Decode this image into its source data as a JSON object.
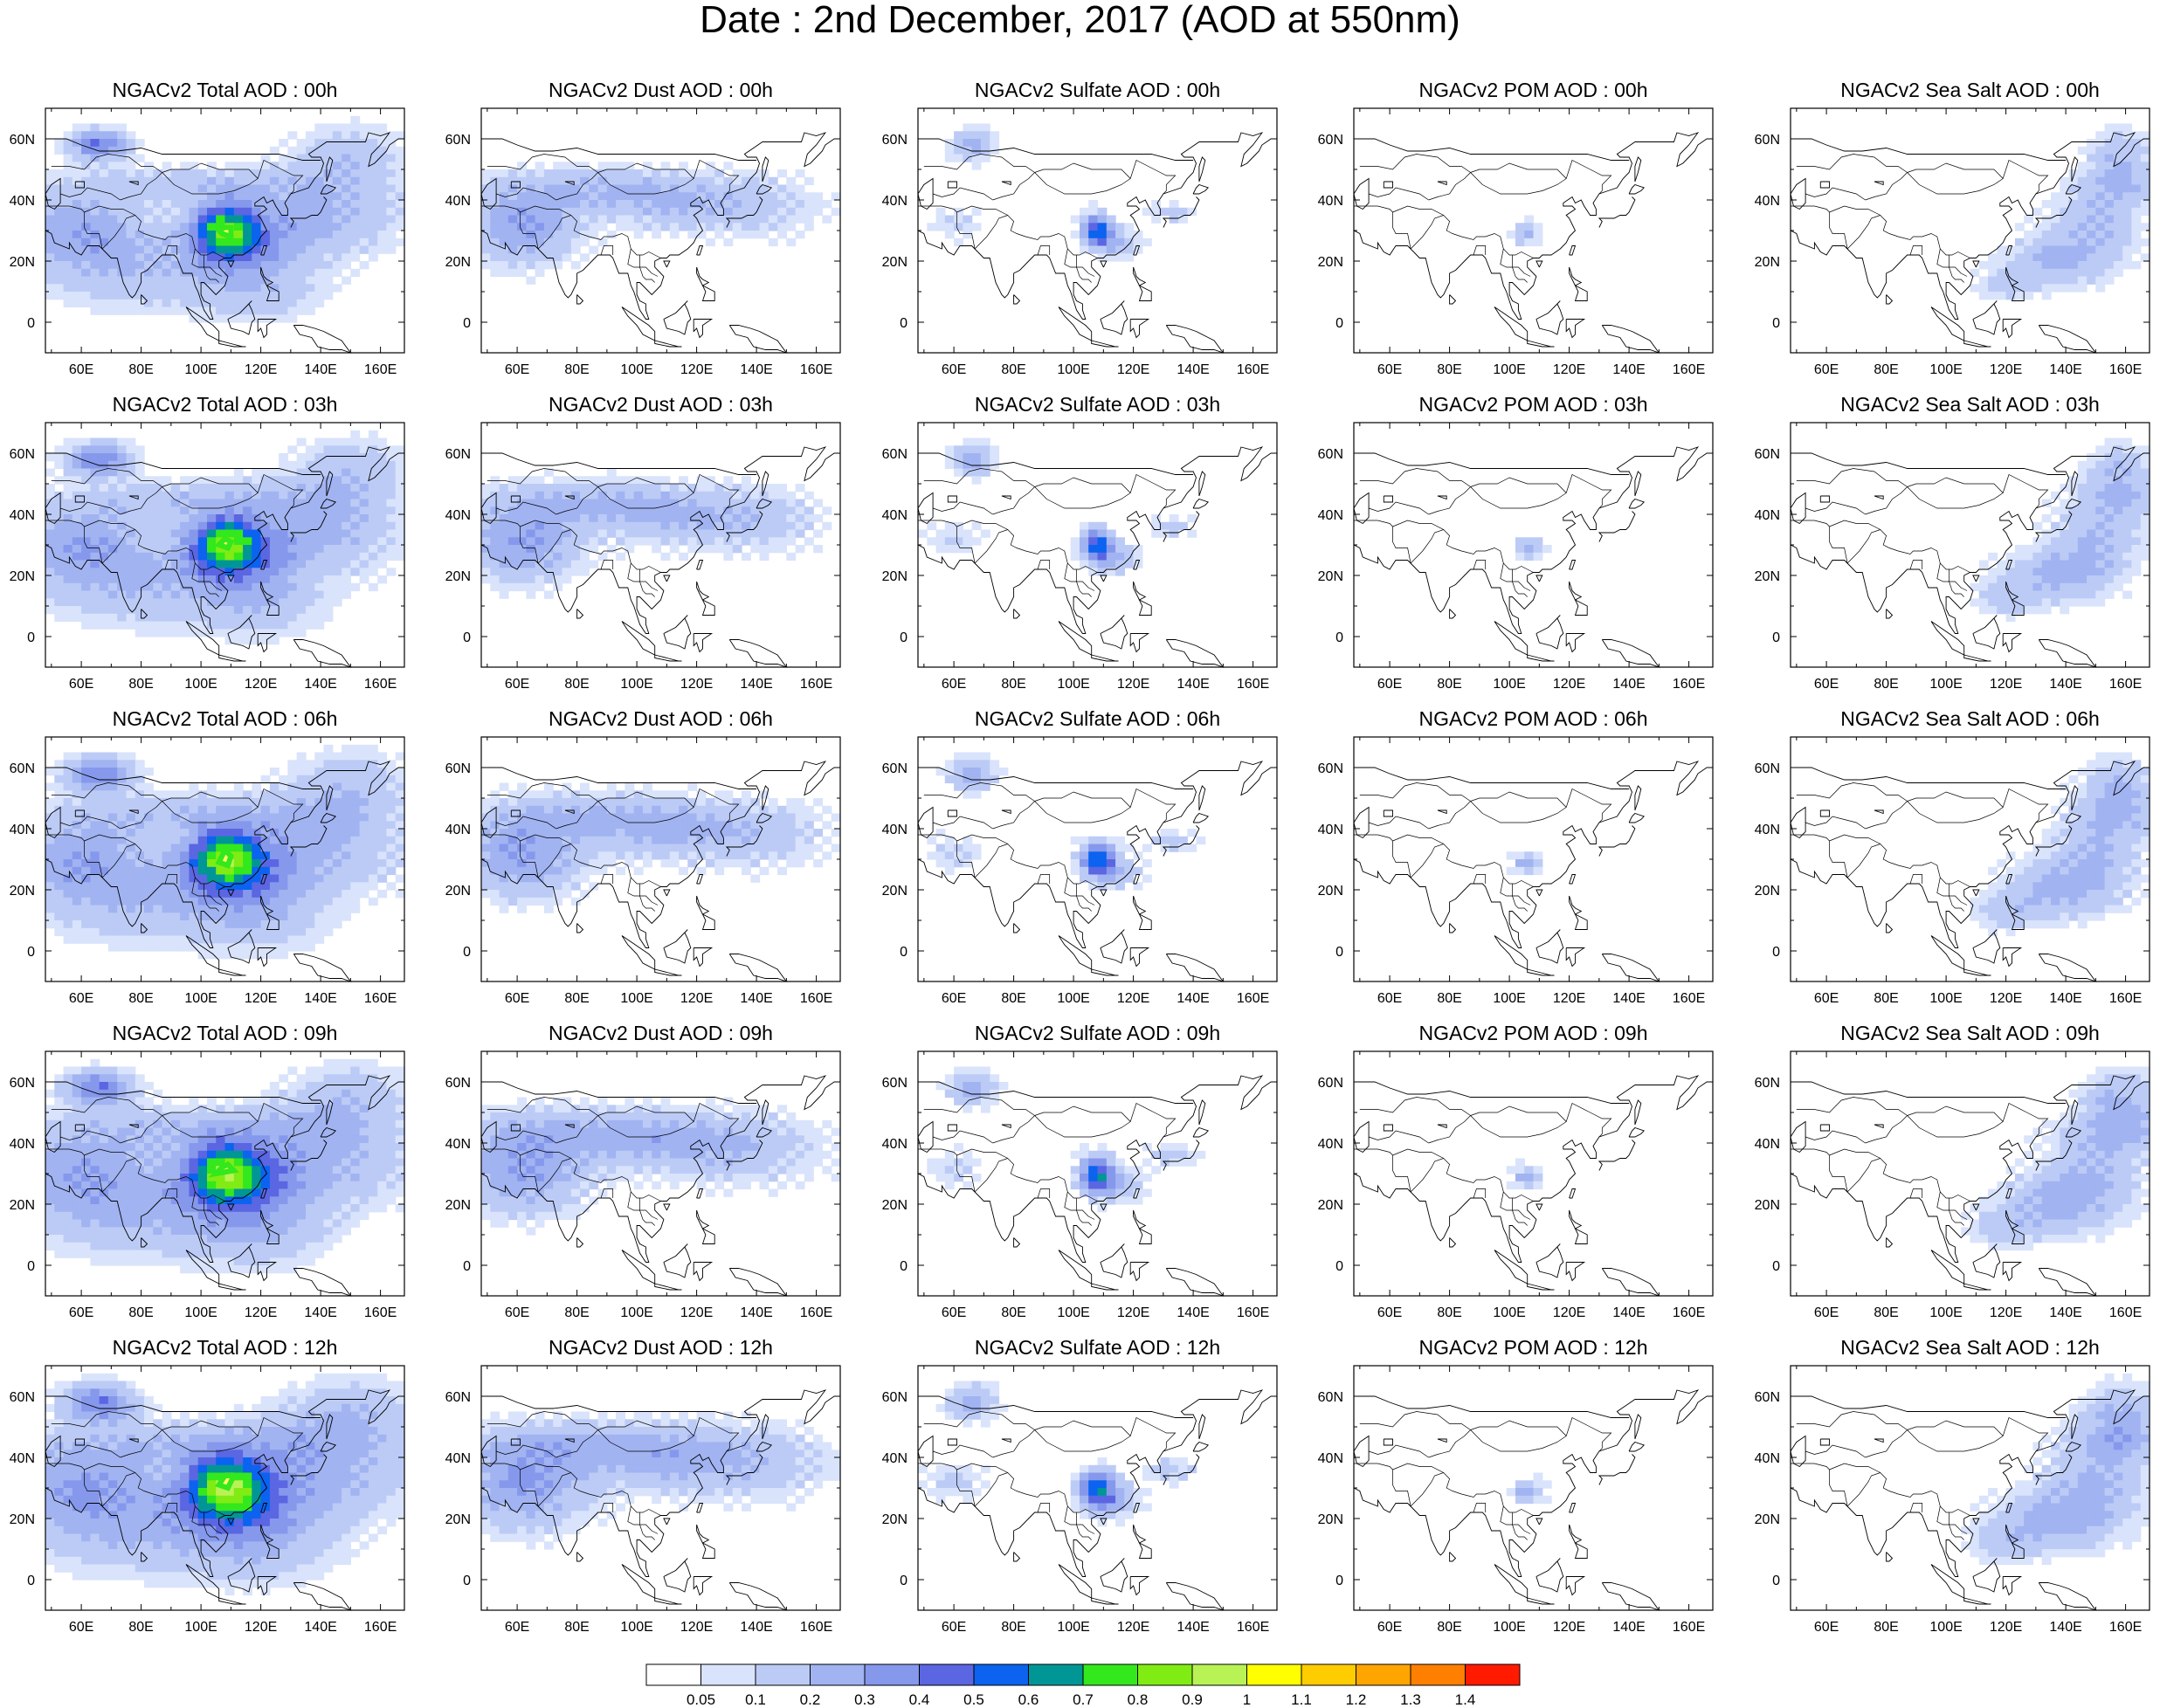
{
  "title": "Date : 2nd December, 2017 (AOD at 550nm)",
  "columns": [
    {
      "key": "total",
      "color": "#4a6ee6"
    },
    {
      "key": "dust",
      "color": "#4a6ee6"
    },
    {
      "key": "sulfate",
      "color": "#4a6ee6"
    },
    {
      "key": "pom",
      "color": "#4a6ee6"
    },
    {
      "key": "seasalt",
      "color": "#4a6ee6"
    }
  ],
  "panel_titles": [
    [
      "NGACv2 Total AOD : 00h",
      "NGACv2 Dust AOD : 00h",
      "NGACv2 Sulfate AOD : 00h",
      "NGACv2 POM AOD : 00h",
      "NGACv2 Sea Salt AOD : 00h"
    ],
    [
      "NGACv2 Total AOD : 03h",
      "NGACv2 Dust AOD : 03h",
      "NGACv2 Sulfate AOD : 03h",
      "NGACv2 POM AOD : 03h",
      "NGACv2 Sea Salt AOD : 03h"
    ],
    [
      "NGACv2 Total AOD : 06h",
      "NGACv2 Dust AOD : 06h",
      "NGACv2 Sulfate AOD : 06h",
      "NGACv2 POM AOD : 06h",
      "NGACv2 Sea Salt AOD : 06h"
    ],
    [
      "NGACv2 Total AOD : 09h",
      "NGACv2 Dust AOD : 09h",
      "NGACv2 Sulfate AOD : 09h",
      "NGACv2 POM AOD : 09h",
      "NGACv2 Sea Salt  AOD : 09h"
    ],
    [
      "NGACv2 Total AOD  : 12h",
      "NGACv2 Dust AOD : 12h",
      "NGACv2 Sulfate AOD : 12h",
      "NGACv2 POM  AOD : 12h",
      "NGACv2 Sea Salt  AOD : 12h"
    ]
  ],
  "map": {
    "lon_range": [
      48,
      168
    ],
    "lat_range": [
      -10,
      70
    ],
    "x_ticks": [
      {
        "value": 60,
        "label": "60E"
      },
      {
        "value": 80,
        "label": "80E"
      },
      {
        "value": 100,
        "label": "100E"
      },
      {
        "value": 120,
        "label": "120E"
      },
      {
        "value": 140,
        "label": "140E"
      },
      {
        "value": 160,
        "label": "160E"
      }
    ],
    "y_ticks": [
      {
        "value": 60,
        "label": "60N"
      },
      {
        "value": 40,
        "label": "40N"
      },
      {
        "value": 20,
        "label": "20N"
      },
      {
        "value": 0,
        "label": "0"
      }
    ]
  },
  "colorbar": {
    "colors": [
      "#ffffff",
      "#d9e3fb",
      "#bccbf6",
      "#a1b3f1",
      "#8698ec",
      "#5b66e2",
      "#0b63f0",
      "#009696",
      "#33e81c",
      "#80ec14",
      "#b9f254",
      "#ffff00",
      "#ffcc00",
      "#ffa500",
      "#ff7f00",
      "#ff1a00"
    ],
    "labels": [
      "0.05",
      "0.1",
      "0.2",
      "0.3",
      "0.4",
      "0.5",
      "0.6",
      "0.7",
      "0.8",
      "0.9",
      "1",
      "1.1",
      "1.2",
      "1.3",
      "1.4"
    ]
  }
}
